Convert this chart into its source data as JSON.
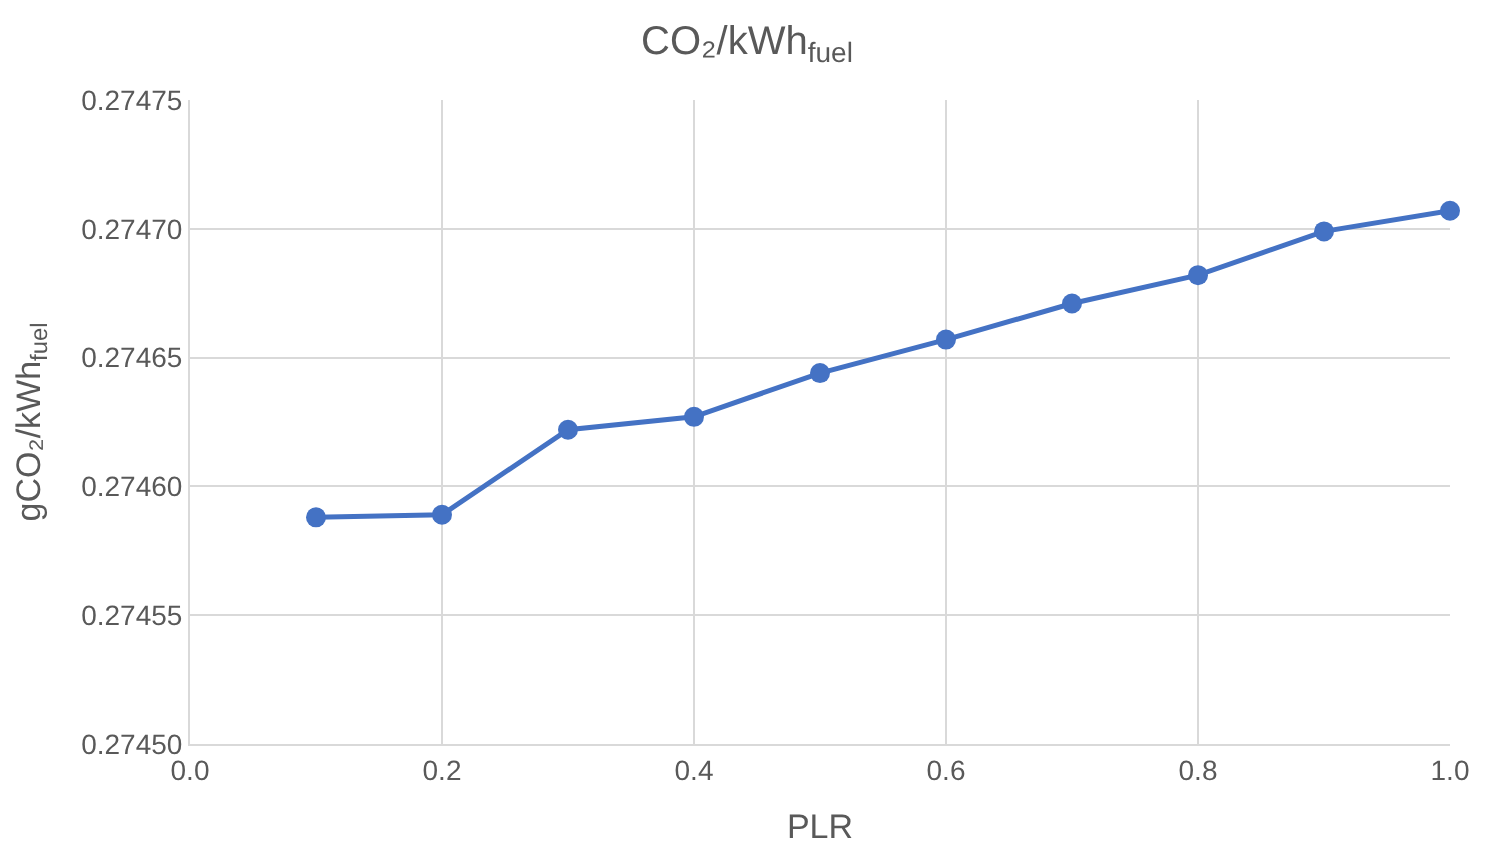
{
  "chart_data": {
    "type": "line",
    "title": "CO₂/kWh$_{fuel}$",
    "xlabel": "PLR",
    "ylabel": "gCO₂/kWh$_{fuel}$",
    "x": [
      0.1,
      0.2,
      0.3,
      0.4,
      0.5,
      0.6,
      0.7,
      0.8,
      0.9,
      1.0
    ],
    "series": [
      {
        "color": "#4472c4",
        "values": [
          0.274588,
          0.274589,
          0.274622,
          0.274627,
          0.274644,
          0.274657,
          0.274671,
          0.274682,
          0.274699,
          0.274707
        ]
      }
    ],
    "xlim": [
      0.0,
      1.0
    ],
    "xticks": [
      {
        "value": 0.0,
        "label": "0.0"
      },
      0.2,
      0.4,
      0.6,
      0.8,
      {
        "value": 1.0,
        "label": "1.0"
      }
    ],
    "ylim": [
      0.2745,
      0.27475
    ],
    "yticks": [
      {
        "value": 0.2745,
        "label": "0.27450"
      },
      0.27455,
      {
        "value": 0.2746,
        "label": "0.27460"
      },
      0.27465,
      {
        "value": 0.2747,
        "label": "0.27470"
      },
      0.27475
    ],
    "grid": true,
    "marker": "circle",
    "line_style": "solid",
    "legend": false
  }
}
